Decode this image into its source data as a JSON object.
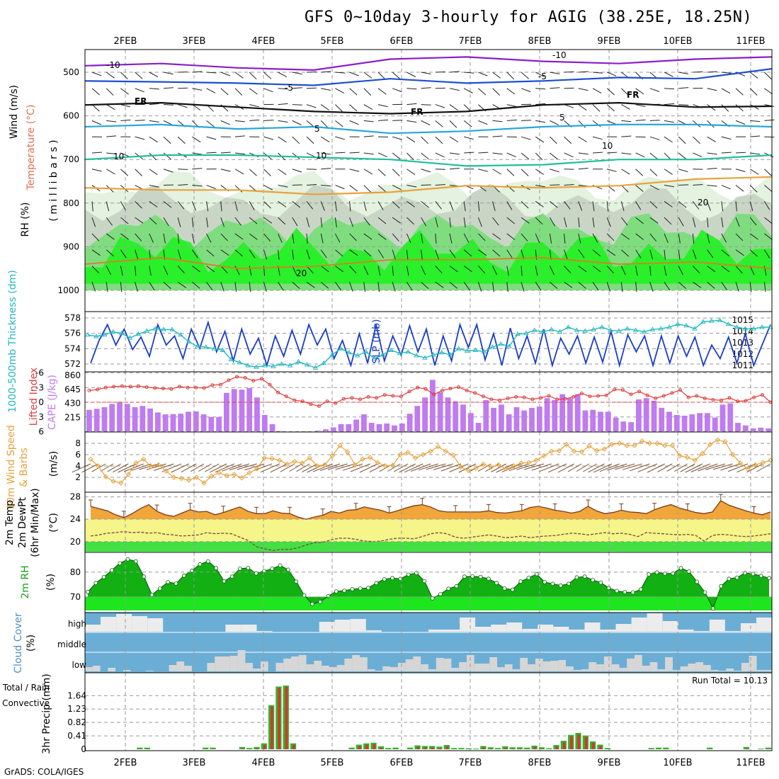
{
  "title": "GFS 0~10day 3-hourly for AGIG (38.25E, 18.25N)",
  "footer": "GrADS: COLA/IGES",
  "dates": [
    "2FEB",
    "3FEB",
    "4FEB",
    "5FEB",
    "6FEB",
    "7FEB",
    "8FEB",
    "9FEB",
    "10FEB",
    "11FEB"
  ],
  "colors": {
    "purple": "#8a1fc8",
    "blue": "#1e4fd0",
    "cyan": "#27a8dc",
    "teal": "#1fc09a",
    "orange": "#e8a23a",
    "darkorange": "#e07a20",
    "green": "#2ec52e",
    "lightgreen": "#7fdd7f",
    "brightgreen": "#21f221",
    "sky": "#6aaed6",
    "cape": "#bf7bf0",
    "lifted": "#e03c3c",
    "slp": "#1a3cc8",
    "thick": "#22b8c0",
    "temp": "#f0a63a",
    "dew": "#f5f58a",
    "rh": "#12b012",
    "precipRed": "#e03030",
    "precipGreen": "#2fb52f"
  },
  "chart_data": [
    {
      "type": "heatmap",
      "name": "upper-air",
      "ylabel_parts": [
        "Wind (m/s)",
        "Temperature (°C)",
        "RH (%)",
        "( m i l l i b a r s )"
      ],
      "y_ticks": [
        "500",
        "600",
        "700",
        "800",
        "900",
        "1000"
      ],
      "contour_labels": [
        "-10",
        "-10",
        "-5",
        "-5",
        "FR",
        "FR",
        "FR",
        "5",
        "5",
        "10",
        "10",
        "10",
        "20",
        "20"
      ],
      "temp_contours": [
        {
          "label": "-10",
          "level_mb": [
            485,
            480,
            490,
            495,
            470,
            465,
            475,
            480,
            470,
            465
          ]
        },
        {
          "label": "-5",
          "level_mb": [
            520,
            522,
            525,
            530,
            515,
            525,
            520,
            512,
            515,
            492
          ]
        },
        {
          "label": "FR",
          "level_mb": [
            575,
            570,
            580,
            590,
            595,
            590,
            575,
            570,
            580,
            578
          ]
        },
        {
          "label": "5",
          "level_mb": [
            625,
            620,
            630,
            625,
            640,
            635,
            625,
            620,
            620,
            625
          ]
        },
        {
          "label": "10",
          "level_mb": [
            700,
            690,
            690,
            695,
            700,
            715,
            712,
            700,
            700,
            690
          ]
        },
        {
          "label": "20",
          "level_mb": [
            765,
            770,
            770,
            780,
            775,
            760,
            765,
            760,
            745,
            740
          ]
        }
      ]
    },
    {
      "type": "line",
      "name": "SLP and thickness",
      "y_ticks_left": [
        "578",
        "576",
        "574",
        "572"
      ],
      "y_ticks_right": [
        "1015",
        "1014",
        "1013",
        "1012",
        "1011"
      ],
      "labels": [
        "1000-500mb Thickness (dm)",
        "SLP (mb)"
      ],
      "slp": [
        1011.2,
        1013.2,
        1014.6,
        1012.8,
        1014.2,
        1012.4,
        1013.5,
        1011.8,
        1014.6,
        1012.8,
        1013.6,
        1011.6,
        1014.2,
        1012.5,
        1014.8,
        1012.2,
        1014.0,
        1011.4,
        1014.2,
        1012.0,
        1013.4,
        1011.0,
        1013.6,
        1011.8,
        1014.1,
        1012.0,
        1014.6,
        1012.8,
        1014.2,
        1011.6,
        1013.2,
        1011.0,
        1013.8,
        1011.2,
        1014.6,
        1011.4,
        1013.6,
        1011.9,
        1014.5,
        1012.2,
        1014.2,
        1011.0,
        1013.6,
        1011.4,
        1014.6,
        1012.6,
        1014.6,
        1011.5,
        1013.8,
        1011.0,
        1014.3,
        1011.6,
        1013.6,
        1011.2,
        1014.2,
        1011.0,
        1013.4,
        1012.0,
        1013.6,
        1011.2,
        1013.5,
        1011.3,
        1014.0,
        1011.0,
        1013.7,
        1012.2,
        1013.6,
        1011.0,
        1013.6,
        1011.2,
        1013.6,
        1011.8,
        1013.5,
        1011.0,
        1012.8,
        1011.6,
        1013.5,
        1011.2,
        1013.8,
        1011.0,
        1012.8,
        1014.6
      ],
      "thickness": [
        575.8,
        575.6,
        575.8,
        576.2,
        576.0,
        575.4,
        575.9,
        576.3,
        576.6,
        576.5,
        576.5,
        575.8,
        574.9,
        574.3,
        574.2,
        574.0,
        573.8,
        572.6,
        572.2,
        571.8,
        571.6,
        571.8,
        571.7,
        572.0,
        571.8,
        572.3,
        571.9,
        571.5,
        572.1,
        573.2,
        574.0,
        573.5,
        573.1,
        573.6,
        572.7,
        573.2,
        573.8,
        573.4,
        573.6,
        573.1,
        572.8,
        573.2,
        573.5,
        573.2,
        574.0,
        573.7,
        573.8,
        573.6,
        574.2,
        574.6,
        574.3,
        575.9,
        576.0,
        576.4,
        576.2,
        576.5,
        576.2,
        576.8,
        576.4,
        576.3,
        576.5,
        576.8,
        576.4,
        576.3,
        576.6,
        576.4,
        576.2,
        576.5,
        576.6,
        576.8,
        577.2,
        577.0,
        576.6,
        577.5,
        577.6,
        577.7,
        577.2,
        576.8,
        576.6,
        576.6,
        576.8,
        576.8
      ]
    },
    {
      "type": "bar",
      "name": "CAPE and Lifted Index",
      "labels": [
        "Lifted Index",
        "CAPE (J/kg)"
      ],
      "y_ticks_left": [
        "-6",
        "-3",
        "0",
        "3",
        "6"
      ],
      "y_ticks_right": [
        "860",
        "645",
        "430",
        "215"
      ],
      "cape": [
        330,
        345,
        370,
        420,
        445,
        420,
        370,
        390,
        350,
        290,
        260,
        265,
        270,
        300,
        305,
        260,
        220,
        220,
        590,
        650,
        640,
        665,
        520,
        250,
        110,
        5,
        0,
        0,
        0,
        0,
        10,
        30,
        60,
        110,
        110,
        180,
        260,
        130,
        110,
        120,
        90,
        120,
        270,
        390,
        520,
        790,
        600,
        520,
        460,
        410,
        280,
        130,
        480,
        360,
        410,
        260,
        370,
        320,
        360,
        380,
        510,
        480,
        570,
        510,
        570,
        320,
        330,
        300,
        300,
        210,
        150,
        140,
        490,
        510,
        470,
        360,
        300,
        250,
        240,
        260,
        280,
        280,
        210,
        410,
        430,
        130,
        90,
        45,
        55,
        45
      ],
      "lifted": [
        -2.4,
        -2.6,
        -3.0,
        -3.2,
        -3.3,
        -3.2,
        -3.3,
        -3.1,
        -2.9,
        -2.8,
        -2.7,
        -3.2,
        -3.0,
        -3.0,
        -2.9,
        -3.5,
        -3.6,
        -4.5,
        -5.2,
        -5.0,
        -4.4,
        -4.8,
        -3.6,
        -2.0,
        -1.2,
        -0.4,
        -0.2,
        0.4,
        0.8,
        -0.2,
        0.2,
        -0.7,
        -0.9,
        -0.6,
        -1.1,
        -0.9,
        -1.5,
        -1.3,
        -1.2,
        -2.2,
        -3.0,
        -2.7,
        -1.6,
        -2.4,
        -2.8,
        -3.1,
        -2.4,
        -1.9,
        -1.2,
        -0.6,
        -0.4,
        -0.8,
        -1.1,
        -1.0,
        -0.6,
        -0.9,
        -1.3,
        -0.6,
        -0.7,
        -1.1,
        -1.8,
        -1.2,
        -1.3,
        -1.4,
        -2.6,
        -2.5,
        -1.6,
        -2.2,
        -1.4,
        -0.8,
        -1.3,
        -1.9,
        -2.5,
        -1.0,
        -1.3,
        -0.8,
        -0.5,
        -0.4,
        -0.9,
        -0.2,
        -0.3,
        -1.0,
        -1.5,
        0.0
      ]
    },
    {
      "type": "line",
      "name": "10m wind",
      "labels": [
        "10m Wind Speed",
        "& Barbs",
        "(m/s)"
      ],
      "y_ticks": [
        "8",
        "6",
        "4",
        "2"
      ],
      "speed": [
        5.2,
        4.0,
        2.1,
        1.3,
        1.0,
        2.5,
        4.5,
        5.2,
        3.9,
        4.2,
        3.1,
        2.0,
        1.8,
        1.5,
        2.0,
        1.0,
        2.2,
        2.8,
        2.3,
        2.5,
        1.9,
        2.8,
        3.5,
        5.4,
        5.3,
        5.0,
        4.3,
        4.8,
        4.5,
        5.4,
        4.0,
        4.2,
        5.8,
        7.6,
        6.5,
        4.2,
        5.2,
        5.5,
        4.6,
        4.0,
        4.1,
        6.0,
        6.4,
        5.4,
        6.0,
        6.6,
        7.4,
        6.6,
        5.9,
        3.8,
        3.2,
        3.6,
        4.3,
        3.8,
        4.2,
        3.5,
        4.0,
        4.5,
        4.6,
        5.0,
        5.8,
        6.6,
        6.7,
        7.8,
        6.6,
        6.5,
        7.5,
        6.7,
        7.0,
        7.8,
        8.0,
        7.6,
        7.6,
        8.4,
        8.0,
        8.0,
        7.6,
        7.6,
        5.8,
        5.5,
        5.0,
        6.2,
        7.8,
        8.6,
        8.3,
        6.0,
        4.5,
        3.5,
        4.2,
        4.6,
        5.0
      ]
    },
    {
      "type": "area",
      "name": "2m temp",
      "labels": [
        "2m Temp",
        "2m DewPt",
        "(6hr Min/Max)",
        "(°C)"
      ],
      "y_ticks": [
        "28",
        "24",
        "20"
      ],
      "temp": [
        26.3,
        25.9,
        25.5,
        24.8,
        24.3,
        25.0,
        25.9,
        26.6,
        25.4,
        24.8,
        24.5,
        25.1,
        25.7,
        25.3,
        25.4,
        24.8,
        25.2,
        25.7,
        26.2,
        25.4,
        25.0,
        25.0,
        25.5,
        25.1,
        25.0,
        24.4,
        24.0,
        24.4,
        24.7,
        25.4,
        25.1,
        25.6,
        25.7,
        26.2,
        25.9,
        25.6,
        25.1,
        25.5,
        26.0,
        26.4,
        26.6,
        26.2,
        25.5,
        25.3,
        25.3,
        25.3,
        25.3,
        25.3,
        25.5,
        25.2,
        25.1,
        25.3,
        25.5,
        26.1,
        26.3,
        26.0,
        25.6,
        25.4,
        25.1,
        25.4,
        26.3,
        25.5,
        25.0,
        25.2,
        25.6,
        25.3,
        25.2,
        25.0,
        25.7,
        26.2,
        26.6,
        26.0,
        25.6,
        25.2,
        25.0,
        25.3,
        27.3,
        26.5,
        26.0,
        25.5,
        25.1,
        24.8,
        25.3
      ],
      "dew": [
        21.0,
        21.2,
        21.5,
        21.6,
        21.8,
        21.6,
        21.7,
        21.5,
        21.6,
        21.3,
        21.2,
        21.0,
        21.1,
        21.2,
        21.6,
        21.4,
        21.5,
        21.4,
        20.8,
        20.2,
        19.1,
        18.7,
        18.4,
        18.6,
        18.6,
        18.9,
        19.4,
        19.8,
        19.9,
        20.3,
        20.6,
        20.6,
        20.4,
        20.1,
        20.0,
        20.1,
        20.4,
        20.6,
        20.6,
        20.5,
        20.9,
        21.4,
        21.6,
        21.4,
        20.8,
        20.6,
        20.8,
        21.0,
        21.2,
        21.0,
        20.7,
        20.8,
        21.0,
        20.7,
        20.9,
        21.0,
        21.1,
        21.3,
        21.5,
        21.4,
        21.2,
        21.4,
        21.6,
        21.4,
        21.5,
        21.3,
        20.9,
        21.6,
        21.5,
        21.4,
        21.3,
        21.2,
        21.3,
        21.1,
        20.1,
        21.1,
        21.3,
        21.2,
        21.0,
        20.9,
        21.0,
        21.2,
        21.4
      ]
    },
    {
      "type": "area",
      "name": "2m RH",
      "labels": [
        "2m RH",
        "(%)"
      ],
      "y_ticks": [
        "80",
        "70"
      ],
      "rh": [
        72.0,
        75.6,
        78.0,
        80.8,
        83.6,
        85.2,
        84.4,
        78.2,
        70.8,
        73.4,
        76.0,
        75.4,
        78.6,
        80.6,
        83.2,
        84.4,
        81.6,
        76.3,
        78.2,
        81.4,
        81.7,
        79.5,
        80.4,
        81.4,
        82.7,
        81.0,
        76.2,
        70.6,
        67.1,
        68.0,
        70.3,
        72.2,
        72.5,
        73.1,
        73.4,
        73.6,
        75.6,
        77.1,
        77.6,
        77.3,
        79.0,
        79.6,
        76.4,
        69.4,
        71.1,
        73.3,
        74.3,
        78.2,
        78.3,
        78.1,
        77.3,
        75.6,
        73.4,
        72.9,
        76.2,
        77.7,
        79.2,
        76.0,
        75.3,
        74.6,
        75.3,
        77.9,
        78.2,
        76.8,
        75.8,
        73.6,
        72.4,
        71.9,
        71.8,
        73.0,
        79.1,
        79.9,
        79.4,
        79.5,
        81.6,
        80.3,
        76.1,
        71.8,
        65.3,
        74.3,
        77.3,
        77.8,
        79.6,
        79.3,
        78.5,
        77.6
      ]
    },
    {
      "type": "bar",
      "name": "Cloud cover",
      "labels": [
        "Cloud Cover",
        "(%)"
      ],
      "levels": [
        "high",
        "middle",
        "low"
      ],
      "high_gaps": [
        10,
        21,
        25,
        22,
        19,
        0,
        0,
        0,
        0,
        10,
        10,
        1,
        0,
        0,
        0,
        14,
        17,
        18,
        2,
        0,
        0,
        0,
        3,
        3,
        20,
        7,
        10,
        13,
        4,
        10,
        7,
        3,
        13,
        3,
        11,
        20,
        26,
        15,
        3,
        1,
        17,
        1,
        12,
        20
      ],
      "low_gaps": [
        6,
        8,
        0,
        5,
        0,
        2,
        0,
        0,
        1,
        0,
        0,
        9,
        14,
        8,
        0,
        0,
        12,
        21,
        21,
        22,
        30,
        12,
        4,
        14,
        0,
        12,
        18,
        21,
        23,
        10,
        15,
        8,
        6,
        9,
        18,
        23,
        20,
        3,
        1,
        7,
        6,
        12,
        17,
        21,
        10,
        3,
        19,
        18,
        5,
        13,
        23,
        11,
        11,
        20,
        6,
        10,
        3,
        19,
        10,
        18,
        14,
        15,
        16,
        7,
        2,
        3,
        13,
        10,
        21,
        10,
        5,
        18,
        23,
        8,
        13,
        3,
        20,
        2,
        7,
        11,
        13,
        9,
        2,
        1,
        4,
        1,
        12,
        22,
        2,
        2
      ]
    },
    {
      "type": "bar",
      "name": "3hr Precip",
      "labels": [
        "Total / Rain",
        "Convective",
        "3hr Precip (mm)"
      ],
      "run_total": "Run Total = 10.13",
      "y_ticks": [
        "1.64",
        "1.23",
        "0.82",
        "0.41",
        "0"
      ],
      "total": [
        0,
        0,
        0,
        0,
        0,
        0,
        0,
        0.05,
        0.05,
        0,
        0,
        0,
        0,
        0,
        0,
        0,
        0.05,
        0.05,
        0,
        0,
        0,
        0.07,
        0.04,
        0.07,
        0.18,
        1.35,
        1.92,
        1.95,
        0.18,
        0,
        0,
        0,
        0,
        0,
        0,
        0,
        0.05,
        0.14,
        0.18,
        0.2,
        0.09,
        0.04,
        0.05,
        0,
        0.05,
        0.12,
        0.1,
        0.1,
        0.08,
        0.13,
        0.04,
        0.04,
        0.03,
        0.02,
        0.1,
        0.06,
        0.04,
        0.09,
        0.06,
        0.06,
        0.05,
        0.11,
        0.06,
        0.03,
        0.13,
        0.26,
        0.44,
        0.5,
        0.42,
        0.24,
        0.14,
        0.04,
        0,
        0,
        0,
        0,
        0,
        0.04,
        0.05,
        0.05,
        0,
        0,
        0,
        0,
        0,
        0.05,
        0,
        0,
        0,
        0,
        0.07,
        0,
        0.02,
        0.05
      ]
    }
  ]
}
